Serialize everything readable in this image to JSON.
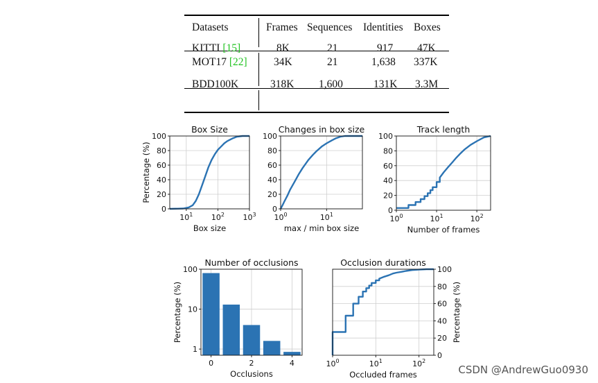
{
  "table": {
    "headers": [
      "Datasets",
      "Frames",
      "Sequences",
      "Identities",
      "Boxes"
    ],
    "rows": [
      {
        "name": "KITTI",
        "ref": "15",
        "cells": [
          "8K",
          "21",
          "917",
          "47K"
        ]
      },
      {
        "name": "MOT17",
        "ref": "22",
        "cells": [
          "34K",
          "21",
          "1,638",
          "337K"
        ]
      },
      {
        "name": "BDD100K",
        "ref": "",
        "cells": [
          "318K",
          "1,600",
          "131K",
          "3.3M"
        ]
      }
    ],
    "ref_color": "#22c322"
  },
  "chart_data": [
    {
      "id": "box-size",
      "type": "line",
      "title": "Box Size",
      "xlabel": "Box size",
      "ylabel": "Percentage (%)",
      "x_scale": "log",
      "xlim": [
        3,
        1000
      ],
      "ylim": [
        0,
        100
      ],
      "xticks": [
        "10^1",
        "10^2",
        "10^3"
      ],
      "yticks": [
        "0",
        "20",
        "40",
        "60",
        "80",
        "100"
      ],
      "series": [
        {
          "x": [
            3,
            8,
            12,
            16,
            20,
            25,
            32,
            40,
            50,
            63,
            80,
            100,
            130,
            160,
            200,
            300,
            400,
            600,
            1000
          ],
          "y": [
            0,
            0.5,
            2,
            5,
            11,
            20,
            33,
            45,
            57,
            67,
            75,
            81,
            86,
            90,
            93,
            97,
            99,
            100,
            100
          ]
        }
      ]
    },
    {
      "id": "box-change",
      "type": "line",
      "title": "Changes in box size",
      "xlabel": "max / min box size",
      "ylabel": "",
      "x_scale": "log",
      "xlim": [
        1,
        60
      ],
      "ylim": [
        0,
        100
      ],
      "xticks": [
        "10^0",
        "10^1"
      ],
      "yticks": [
        "0",
        "20",
        "40",
        "60",
        "80",
        "100"
      ],
      "series": [
        {
          "x": [
            1,
            1.1,
            1.2,
            1.4,
            1.6,
            2,
            2.5,
            3,
            4,
            5,
            6,
            8,
            10,
            13,
            16,
            20,
            25,
            30,
            40,
            60
          ],
          "y": [
            0,
            5,
            10,
            18,
            26,
            37,
            48,
            56,
            67,
            74,
            79,
            86,
            90,
            94,
            97,
            99,
            100,
            100,
            100,
            100
          ]
        }
      ]
    },
    {
      "id": "track-length",
      "type": "line",
      "title": "Track length",
      "xlabel": "Number of frames",
      "ylabel": "",
      "x_scale": "log",
      "xlim": [
        1,
        220
      ],
      "ylim": [
        0,
        100
      ],
      "xticks": [
        "10^0",
        "10^1",
        "10^2"
      ],
      "yticks": [
        "0",
        "20",
        "40",
        "60",
        "80",
        "100"
      ],
      "series": [
        {
          "x": [
            1,
            2,
            3,
            4,
            5,
            6,
            7,
            8,
            10,
            12,
            15,
            20,
            25,
            30,
            40,
            50,
            70,
            100,
            150,
            220
          ],
          "y": [
            3,
            7,
            11,
            15,
            19,
            23,
            27,
            31,
            38,
            44,
            51,
            59,
            65,
            70,
            77,
            82,
            88,
            93,
            98,
            100
          ]
        }
      ]
    },
    {
      "id": "num-occlusions",
      "type": "bar",
      "title": "Number of occlusions",
      "xlabel": "Occlusions",
      "ylabel": "Percentage (%)",
      "y_scale": "log",
      "ylim": [
        0.7,
        100
      ],
      "categories": [
        "0",
        "1",
        "2",
        "3",
        "4"
      ],
      "xticks": [
        "0",
        "2",
        "4"
      ],
      "yticks": [
        "1",
        "10",
        "100"
      ],
      "values": [
        80,
        13,
        4,
        1.6,
        0.85
      ]
    },
    {
      "id": "occlusion-durations",
      "type": "line",
      "title": "Occlusion durations",
      "xlabel": "Occluded frames",
      "ylabel": "Percentage (%)",
      "x_scale": "log",
      "xlim": [
        1,
        220
      ],
      "ylim": [
        0,
        100
      ],
      "xticks": [
        "10^0",
        "10^1",
        "10^2"
      ],
      "yticks": [
        "0",
        "20",
        "40",
        "60",
        "80",
        "100"
      ],
      "series": [
        {
          "x": [
            1,
            2,
            3,
            4,
            5,
            6,
            7,
            8,
            10,
            12,
            15,
            20,
            25,
            30,
            40,
            50,
            70,
            100,
            150,
            220
          ],
          "y": [
            27,
            46,
            60,
            68,
            74,
            78,
            81,
            84,
            87,
            89,
            91,
            93,
            95,
            96,
            97,
            98,
            99,
            99.5,
            100,
            100
          ]
        }
      ]
    }
  ],
  "watermark": "CSDN @AndrewGuo0930"
}
